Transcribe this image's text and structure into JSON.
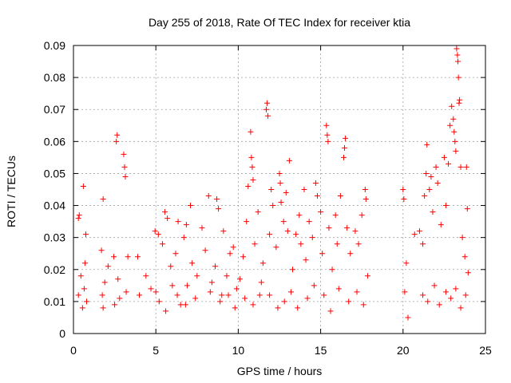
{
  "chart_data": {
    "type": "scatter",
    "title": "Day 255 of 2018, Rate Of TEC Index for receiver ktia",
    "xlabel": "GPS time / hours",
    "ylabel": "ROTI / TECUs",
    "xlim": [
      0,
      25
    ],
    "ylim": [
      0,
      0.09
    ],
    "x_ticks": [
      0,
      5,
      10,
      15,
      20,
      25
    ],
    "x_tick_labels": [
      "0",
      "5",
      "10",
      "15",
      "20",
      "25"
    ],
    "y_ticks": [
      0,
      0.01,
      0.02,
      0.03,
      0.04,
      0.05,
      0.06,
      0.07,
      0.08,
      0.09
    ],
    "y_tick_labels": [
      "0",
      "0.01",
      "0.02",
      "0.03",
      "0.04",
      "0.05",
      "0.06",
      "0.07",
      "0.08",
      "0.09"
    ],
    "grid": true,
    "marker": "+",
    "color": "#ff0000",
    "series": [
      {
        "name": "ROTI",
        "points": [
          [
            0.3,
            0.036
          ],
          [
            0.35,
            0.037
          ],
          [
            0.6,
            0.046
          ],
          [
            0.75,
            0.031
          ],
          [
            0.3,
            0.012
          ],
          [
            0.45,
            0.018
          ],
          [
            0.55,
            0.008
          ],
          [
            0.65,
            0.014
          ],
          [
            0.7,
            0.022
          ],
          [
            0.8,
            0.01
          ],
          [
            1.7,
            0.026
          ],
          [
            1.8,
            0.042
          ],
          [
            1.75,
            0.012
          ],
          [
            1.9,
            0.016
          ],
          [
            2.1,
            0.021
          ],
          [
            2.45,
            0.024
          ],
          [
            2.6,
            0.06
          ],
          [
            2.65,
            0.062
          ],
          [
            2.7,
            0.017
          ],
          [
            2.8,
            0.011
          ],
          [
            3.05,
            0.056
          ],
          [
            3.1,
            0.052
          ],
          [
            3.15,
            0.049
          ],
          [
            3.2,
            0.013
          ],
          [
            3.3,
            0.024
          ],
          [
            3.9,
            0.024
          ],
          [
            4.0,
            0.012
          ],
          [
            4.4,
            0.018
          ],
          [
            4.7,
            0.014
          ],
          [
            4.95,
            0.032
          ],
          [
            5.15,
            0.031
          ],
          [
            5.2,
            0.01
          ],
          [
            5.4,
            0.028
          ],
          [
            5.55,
            0.038
          ],
          [
            5.7,
            0.036
          ],
          [
            5.9,
            0.021
          ],
          [
            6.0,
            0.015
          ],
          [
            6.2,
            0.025
          ],
          [
            6.35,
            0.035
          ],
          [
            6.5,
            0.009
          ],
          [
            6.7,
            0.03
          ],
          [
            6.85,
            0.034
          ],
          [
            6.9,
            0.015
          ],
          [
            7.1,
            0.04
          ],
          [
            7.2,
            0.022
          ],
          [
            7.5,
            0.018
          ],
          [
            7.8,
            0.033
          ],
          [
            8.0,
            0.026
          ],
          [
            8.2,
            0.043
          ],
          [
            8.4,
            0.016
          ],
          [
            8.6,
            0.021
          ],
          [
            8.7,
            0.042
          ],
          [
            8.8,
            0.039
          ],
          [
            9.0,
            0.012
          ],
          [
            9.1,
            0.032
          ],
          [
            9.3,
            0.018
          ],
          [
            9.5,
            0.025
          ],
          [
            9.7,
            0.027
          ],
          [
            9.9,
            0.014
          ],
          [
            10.1,
            0.017
          ],
          [
            10.3,
            0.024
          ],
          [
            10.5,
            0.035
          ],
          [
            10.6,
            0.046
          ],
          [
            10.75,
            0.063
          ],
          [
            10.8,
            0.055
          ],
          [
            10.85,
            0.052
          ],
          [
            10.9,
            0.048
          ],
          [
            11.0,
            0.028
          ],
          [
            11.2,
            0.038
          ],
          [
            11.3,
            0.012
          ],
          [
            11.5,
            0.022
          ],
          [
            11.7,
            0.07
          ],
          [
            11.75,
            0.072
          ],
          [
            11.8,
            0.068
          ],
          [
            11.9,
            0.031
          ],
          [
            12.0,
            0.045
          ],
          [
            12.1,
            0.04
          ],
          [
            12.3,
            0.027
          ],
          [
            12.5,
            0.05
          ],
          [
            12.55,
            0.047
          ],
          [
            12.6,
            0.041
          ],
          [
            12.75,
            0.035
          ],
          [
            12.9,
            0.044
          ],
          [
            13.0,
            0.032
          ],
          [
            13.1,
            0.054
          ],
          [
            13.3,
            0.02
          ],
          [
            13.5,
            0.031
          ],
          [
            13.7,
            0.037
          ],
          [
            13.8,
            0.028
          ],
          [
            14.0,
            0.045
          ],
          [
            14.1,
            0.023
          ],
          [
            14.3,
            0.035
          ],
          [
            14.5,
            0.03
          ],
          [
            14.7,
            0.047
          ],
          [
            14.8,
            0.043
          ],
          [
            15.0,
            0.038
          ],
          [
            15.1,
            0.025
          ],
          [
            15.35,
            0.065
          ],
          [
            15.4,
            0.062
          ],
          [
            15.45,
            0.06
          ],
          [
            15.5,
            0.033
          ],
          [
            15.7,
            0.02
          ],
          [
            15.9,
            0.037
          ],
          [
            16.0,
            0.028
          ],
          [
            16.2,
            0.043
          ],
          [
            16.4,
            0.055
          ],
          [
            16.45,
            0.058
          ],
          [
            16.5,
            0.061
          ],
          [
            16.6,
            0.033
          ],
          [
            16.8,
            0.025
          ],
          [
            17.1,
            0.032
          ],
          [
            17.3,
            0.028
          ],
          [
            17.5,
            0.037
          ],
          [
            17.7,
            0.045
          ],
          [
            17.75,
            0.042
          ],
          [
            17.85,
            0.018
          ],
          [
            20.0,
            0.045
          ],
          [
            20.05,
            0.042
          ],
          [
            20.1,
            0.013
          ],
          [
            20.2,
            0.022
          ],
          [
            20.3,
            0.005
          ],
          [
            20.7,
            0.031
          ],
          [
            21.0,
            0.032
          ],
          [
            21.2,
            0.028
          ],
          [
            21.3,
            0.043
          ],
          [
            21.4,
            0.05
          ],
          [
            21.45,
            0.059
          ],
          [
            21.6,
            0.045
          ],
          [
            21.7,
            0.049
          ],
          [
            21.8,
            0.038
          ],
          [
            22.0,
            0.052
          ],
          [
            22.1,
            0.047
          ],
          [
            22.3,
            0.034
          ],
          [
            22.5,
            0.055
          ],
          [
            22.6,
            0.04
          ],
          [
            22.75,
            0.053
          ],
          [
            22.85,
            0.065
          ],
          [
            22.95,
            0.071
          ],
          [
            23.05,
            0.067
          ],
          [
            23.1,
            0.063
          ],
          [
            23.15,
            0.06
          ],
          [
            23.2,
            0.057
          ],
          [
            23.25,
            0.089
          ],
          [
            23.3,
            0.087
          ],
          [
            23.33,
            0.085
          ],
          [
            23.36,
            0.08
          ],
          [
            23.4,
            0.072
          ],
          [
            23.43,
            0.073
          ],
          [
            23.5,
            0.052
          ],
          [
            23.6,
            0.03
          ],
          [
            23.75,
            0.024
          ],
          [
            23.85,
            0.052
          ],
          [
            23.9,
            0.039
          ],
          [
            23.95,
            0.019
          ],
          [
            21.2,
            0.012
          ],
          [
            21.5,
            0.01
          ],
          [
            21.9,
            0.015
          ],
          [
            22.2,
            0.009
          ],
          [
            22.6,
            0.013
          ],
          [
            22.9,
            0.011
          ],
          [
            23.2,
            0.014
          ],
          [
            23.5,
            0.008
          ],
          [
            23.8,
            0.012
          ],
          [
            12.8,
            0.01
          ],
          [
            13.2,
            0.013
          ],
          [
            13.6,
            0.008
          ],
          [
            14.2,
            0.011
          ],
          [
            14.6,
            0.015
          ],
          [
            15.2,
            0.012
          ],
          [
            15.6,
            0.007
          ],
          [
            16.1,
            0.014
          ],
          [
            16.7,
            0.01
          ],
          [
            17.2,
            0.013
          ],
          [
            17.6,
            0.009
          ],
          [
            10.4,
            0.011
          ],
          [
            10.9,
            0.009
          ],
          [
            11.4,
            0.016
          ],
          [
            11.9,
            0.012
          ],
          [
            12.4,
            0.008
          ],
          [
            8.3,
            0.013
          ],
          [
            8.9,
            0.01
          ],
          [
            9.4,
            0.012
          ],
          [
            9.8,
            0.008
          ],
          [
            6.3,
            0.012
          ],
          [
            6.8,
            0.009
          ],
          [
            7.4,
            0.011
          ],
          [
            5.6,
            0.007
          ],
          [
            5.0,
            0.013
          ],
          [
            2.5,
            0.009
          ],
          [
            1.8,
            0.008
          ]
        ]
      }
    ]
  }
}
